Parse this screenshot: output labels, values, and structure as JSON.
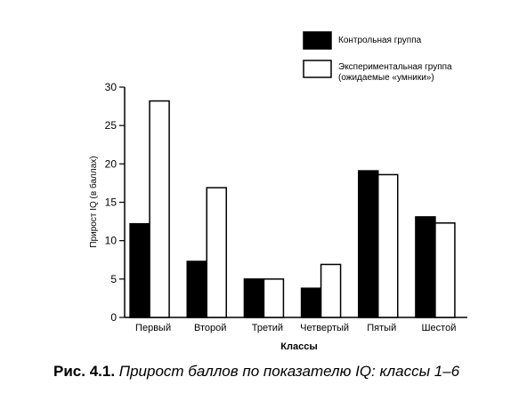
{
  "chart_data": {
    "type": "bar",
    "y_label": "Прирост IQ (в баллах)",
    "x_label": "Классы",
    "caption_label": "Рис. 4.1.",
    "caption_text": "Прирост баллов по показателю IQ: классы 1–6",
    "categories": [
      "Первый",
      "Второй",
      "Третий",
      "Четвертый",
      "Пятый",
      "Шестой"
    ],
    "series": [
      {
        "name": "Контрольная группа",
        "color": "#000000",
        "values": [
          12.2,
          7.3,
          5.0,
          3.8,
          19.1,
          13.1
        ]
      },
      {
        "name": "Экспериментальная группа (ожидаемые «умники»)",
        "color": "#ffffff",
        "values": [
          28.2,
          16.9,
          5.0,
          6.9,
          18.6,
          12.3
        ]
      }
    ],
    "ylim": [
      0,
      30
    ],
    "yticks": [
      0,
      5,
      10,
      15,
      20,
      25,
      30
    ]
  }
}
